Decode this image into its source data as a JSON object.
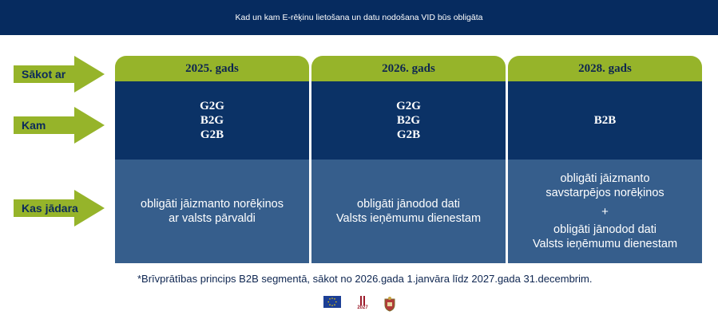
{
  "header": {
    "title": "Kad un kam E-rēķinu lietošana un datu nodošana VID būs obligāta"
  },
  "row_labels": {
    "start": "Sākot ar",
    "whom": "Kam",
    "what": "Kas jādara"
  },
  "columns": [
    {
      "year": "2025. gads",
      "whom": [
        "G2G",
        "B2G",
        "G2B"
      ],
      "what_lines": [
        "obligāti jāizmanto norēķinos",
        "ar valsts pārvaldi"
      ]
    },
    {
      "year": "2026. gads",
      "whom": [
        "G2G",
        "B2G",
        "G2B"
      ],
      "what_lines": [
        "obligāti jānodod dati",
        "Valsts ieņēmumu dienestam"
      ]
    },
    {
      "year": "2028. gads",
      "whom": [
        "B2B"
      ],
      "what_lines_a": [
        "obligāti jāizmanto",
        "savstarpējos norēķinos"
      ],
      "plus": "+",
      "what_lines_b": [
        "obligāti jānodod dati",
        "Valsts ieņēmumu dienestam"
      ]
    }
  ],
  "footnote": "*Brīvprātības princips B2B segmentā, sākot no 2026.gada 1.janvāra līdz 2027.gada 31.decembrim.",
  "logos": {
    "eu_icon": "eu-flag-icon",
    "year_mark": "2027",
    "seal_icon": "coat-of-arms-icon"
  },
  "colors": {
    "header_bg": "#062b5f",
    "green": "#96b42a",
    "dark_blue": "#0b3266",
    "mid_blue": "#365e8c"
  }
}
